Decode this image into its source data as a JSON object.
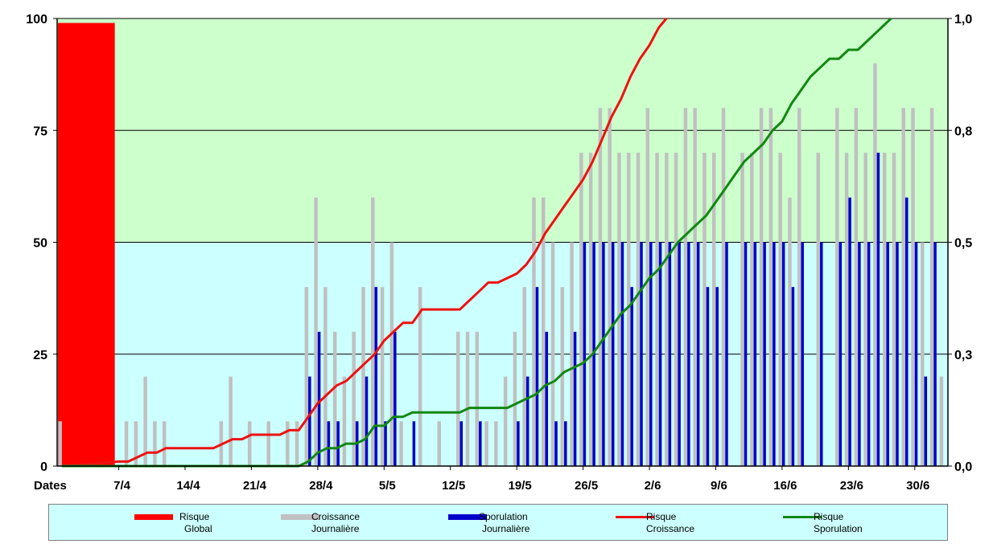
{
  "chart_data": {
    "type": "bar",
    "title": "",
    "xlabel": "Dates",
    "y_left": {
      "ylim": [
        0,
        100
      ],
      "ticks": [
        "0",
        "25",
        "50",
        "75",
        "100"
      ],
      "tick_values": [
        0,
        25,
        50,
        75,
        100
      ]
    },
    "y_right": {
      "ylim": [
        0,
        1.0
      ],
      "ticks": [
        "0,0",
        "0,3",
        "0,5",
        "0,8",
        "1,0"
      ],
      "tick_values": [
        0,
        0.25,
        0.5,
        0.75,
        1.0
      ]
    },
    "x_tick_labels": [
      "7/4",
      "14/4",
      "21/4",
      "28/4",
      "5/5",
      "12/5",
      "19/5",
      "26/5",
      "2/6",
      "9/6",
      "16/6",
      "23/6",
      "30/6"
    ],
    "x_tick_days": [
      6,
      13,
      20,
      27,
      34,
      41,
      48,
      55,
      62,
      69,
      76,
      83,
      90
    ],
    "x_range_days": [
      0,
      94
    ],
    "grid": true,
    "legend_position": "bottom",
    "background_colors": {
      "risk_zone": "#ccffcc",
      "low_zone": "#ccffff"
    },
    "risque_global": {
      "name_lines": [
        "Risque",
        "Global"
      ],
      "color": "#ff0000",
      "value": 99,
      "day_start": 0,
      "day_end": 6
    },
    "croissance": {
      "name_lines": [
        "Croissance",
        "Journalière"
      ],
      "color": "#c0c0c0",
      "days": [
        0,
        7,
        8,
        9,
        10,
        11,
        17,
        18,
        20,
        22,
        24,
        25,
        26,
        27,
        28,
        29,
        30,
        31,
        32,
        33,
        34,
        35,
        36,
        38,
        40,
        42,
        43,
        44,
        45,
        46,
        47,
        48,
        49,
        50,
        51,
        52,
        53,
        54,
        55,
        56,
        57,
        58,
        59,
        60,
        61,
        62,
        63,
        64,
        65,
        66,
        67,
        68,
        69,
        70,
        72,
        73,
        74,
        75,
        76,
        77,
        78,
        80,
        82,
        83,
        84,
        85,
        86,
        87,
        88,
        89,
        90,
        91,
        92,
        93
      ],
      "values": [
        10,
        10,
        10,
        20,
        10,
        10,
        10,
        20,
        10,
        10,
        10,
        10,
        40,
        60,
        40,
        30,
        20,
        30,
        40,
        60,
        40,
        50,
        10,
        40,
        10,
        30,
        30,
        30,
        10,
        10,
        20,
        30,
        40,
        60,
        60,
        50,
        40,
        50,
        70,
        70,
        80,
        80,
        70,
        70,
        70,
        80,
        70,
        70,
        70,
        80,
        80,
        70,
        70,
        80,
        70,
        70,
        80,
        80,
        70,
        60,
        80,
        70,
        80,
        70,
        80,
        70,
        90,
        70,
        70,
        80,
        80,
        50,
        80,
        20
      ]
    },
    "sporulation": {
      "name_lines": [
        "Sporulation",
        "Journalière"
      ],
      "color": "#0000cc",
      "days": [
        26,
        27,
        28,
        29,
        31,
        32,
        33,
        34,
        35,
        37,
        42,
        44,
        48,
        49,
        50,
        51,
        52,
        53,
        54,
        55,
        56,
        57,
        58,
        59,
        60,
        61,
        62,
        63,
        64,
        65,
        66,
        67,
        68,
        69,
        70,
        72,
        73,
        74,
        75,
        76,
        77,
        78,
        80,
        82,
        83,
        84,
        85,
        86,
        87,
        88,
        89,
        90,
        91,
        92
      ],
      "values": [
        20,
        30,
        10,
        10,
        10,
        20,
        40,
        10,
        30,
        10,
        10,
        10,
        10,
        20,
        40,
        30,
        10,
        10,
        30,
        50,
        50,
        50,
        50,
        50,
        40,
        50,
        50,
        50,
        50,
        50,
        50,
        50,
        40,
        40,
        50,
        50,
        50,
        50,
        50,
        50,
        40,
        50,
        50,
        50,
        60,
        50,
        50,
        70,
        50,
        50,
        60,
        50,
        20,
        50
      ]
    },
    "risque_croissance": {
      "name_lines": [
        "Risque",
        "Croissance"
      ],
      "color": "#ee1111",
      "axis": "right",
      "x": [
        0,
        6,
        7,
        8,
        9,
        10,
        11,
        12,
        13,
        14,
        15,
        16,
        17,
        18,
        19,
        20,
        21,
        22,
        23,
        24,
        25,
        26,
        27,
        28,
        29,
        30,
        31,
        32,
        33,
        34,
        35,
        36,
        37,
        38,
        39,
        40,
        41,
        42,
        43,
        44,
        45,
        46,
        47,
        48,
        49,
        50,
        51,
        52,
        53,
        54,
        55,
        56,
        57,
        58,
        59,
        60,
        61,
        62,
        63,
        63.8
      ],
      "y": [
        0,
        0.01,
        0.01,
        0.02,
        0.03,
        0.03,
        0.04,
        0.04,
        0.04,
        0.04,
        0.04,
        0.04,
        0.05,
        0.06,
        0.06,
        0.07,
        0.07,
        0.07,
        0.07,
        0.08,
        0.08,
        0.11,
        0.14,
        0.16,
        0.18,
        0.19,
        0.21,
        0.23,
        0.25,
        0.28,
        0.3,
        0.32,
        0.32,
        0.35,
        0.35,
        0.35,
        0.35,
        0.35,
        0.37,
        0.39,
        0.41,
        0.41,
        0.42,
        0.43,
        0.45,
        0.48,
        0.52,
        0.55,
        0.58,
        0.61,
        0.64,
        0.68,
        0.73,
        0.78,
        0.82,
        0.87,
        0.91,
        0.94,
        0.98,
        1.0
      ]
    },
    "risque_sporulation": {
      "name_lines": [
        "Risque",
        "Sporulation"
      ],
      "color": "#118811",
      "axis": "right",
      "x": [
        0,
        25,
        26,
        27,
        28,
        29,
        30,
        31,
        32,
        33,
        34,
        35,
        36,
        37,
        38,
        39,
        40,
        41,
        42,
        43,
        44,
        45,
        46,
        47,
        48,
        49,
        50,
        51,
        52,
        53,
        54,
        55,
        56,
        57,
        58,
        59,
        60,
        61,
        62,
        63,
        64,
        65,
        66,
        67,
        68,
        69,
        70,
        71,
        72,
        73,
        74,
        75,
        76,
        77,
        78,
        79,
        80,
        81,
        82,
        83,
        84,
        85,
        86,
        87.5
      ],
      "y": [
        0,
        0,
        0.01,
        0.03,
        0.04,
        0.04,
        0.05,
        0.05,
        0.06,
        0.09,
        0.09,
        0.11,
        0.11,
        0.12,
        0.12,
        0.12,
        0.12,
        0.12,
        0.12,
        0.13,
        0.13,
        0.13,
        0.13,
        0.13,
        0.14,
        0.15,
        0.16,
        0.18,
        0.19,
        0.21,
        0.22,
        0.23,
        0.25,
        0.28,
        0.31,
        0.34,
        0.36,
        0.39,
        0.42,
        0.44,
        0.47,
        0.5,
        0.52,
        0.54,
        0.56,
        0.59,
        0.62,
        0.65,
        0.68,
        0.7,
        0.72,
        0.75,
        0.77,
        0.81,
        0.84,
        0.87,
        0.89,
        0.91,
        0.91,
        0.93,
        0.93,
        0.95,
        0.97,
        1.0
      ]
    }
  }
}
